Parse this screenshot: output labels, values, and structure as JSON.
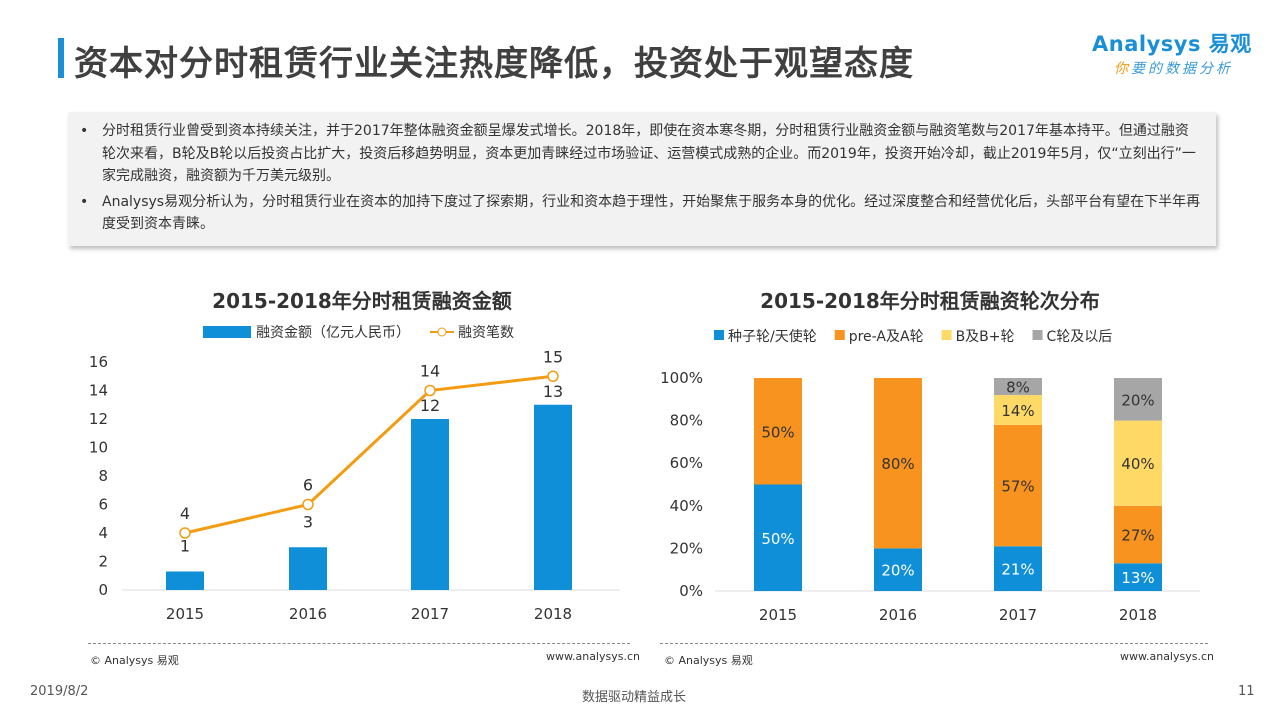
{
  "title": "资本对分时租赁行业关注热度降低，投资处于观望态度",
  "logo": {
    "brand": "Analysys 易观",
    "slogan_first": "你",
    "slogan_rest": "要的数据分析"
  },
  "summary": [
    "分时租赁行业曾受到资本持续关注，并于2017年整体融资金额呈爆发式增长。2018年，即使在资本寒冬期，分时租赁行业融资金额与融资笔数与2017年基本持平。但通过融资轮次来看，B轮及B轮以后投资占比扩大，投资后移趋势明显，资本更加青睐经过市场验证、运营模式成熟的企业。而2019年，投资开始冷却，截止2019年5月，仅“立刻出行”一家完成融资，融资额为千万美元级别。",
    "Analysys易观分析认为，分时租赁行业在资本的加持下度过了探索期，行业和资本趋于理性，开始聚焦于服务本身的优化。经过深度整合和经营优化后，头部平台有望在下半年再度受到资本青睐。"
  ],
  "chart_data": [
    {
      "type": "bar+line",
      "title": "2015-2018年分时租赁融资金额",
      "categories": [
        "2015",
        "2016",
        "2017",
        "2018"
      ],
      "series": [
        {
          "name": "融资金额（亿元人民币）",
          "type": "bar",
          "values": [
            1.3,
            3,
            12,
            13
          ],
          "labels": [
            "1",
            "3",
            "12",
            "13"
          ],
          "color": "#0e8fd8"
        },
        {
          "name": "融资笔数",
          "type": "line",
          "values": [
            4,
            6,
            14,
            15
          ],
          "labels": [
            "4",
            "6",
            "14",
            "15"
          ],
          "color": "#f39c12"
        }
      ],
      "ylim": [
        0,
        16
      ],
      "yticks": [
        "0",
        "2",
        "4",
        "6",
        "8",
        "10",
        "12",
        "14",
        "16"
      ],
      "grid": false,
      "legend": "top"
    },
    {
      "type": "stacked-bar",
      "title": "2015-2018年分时租赁融资轮次分布",
      "categories": [
        "2015",
        "2016",
        "2017",
        "2018"
      ],
      "series": [
        {
          "name": "种子轮/天使轮",
          "values": [
            50,
            20,
            21,
            13
          ],
          "color": "#0e8fd8"
        },
        {
          "name": "pre-A及A轮",
          "values": [
            50,
            80,
            57,
            27
          ],
          "color": "#f7931e"
        },
        {
          "name": "B及B+轮",
          "values": [
            0,
            0,
            14,
            40
          ],
          "color": "#ffd966"
        },
        {
          "name": "C轮及以后",
          "values": [
            0,
            0,
            8,
            20
          ],
          "color": "#a6a6a6"
        }
      ],
      "ylim": [
        0,
        100
      ],
      "yticks": [
        "0%",
        "20%",
        "40%",
        "60%",
        "80%",
        "100%"
      ],
      "grid": false,
      "legend": "top"
    }
  ],
  "sources": {
    "left_copyright": "© Analysys 易观",
    "left_url": "www.analysys.cn",
    "right_copyright": "© Analysys 易观",
    "right_url": "www.analysys.cn"
  },
  "footer": {
    "date": "2019/8/2",
    "slogan": "数据驱动精益成长",
    "page": "11"
  }
}
